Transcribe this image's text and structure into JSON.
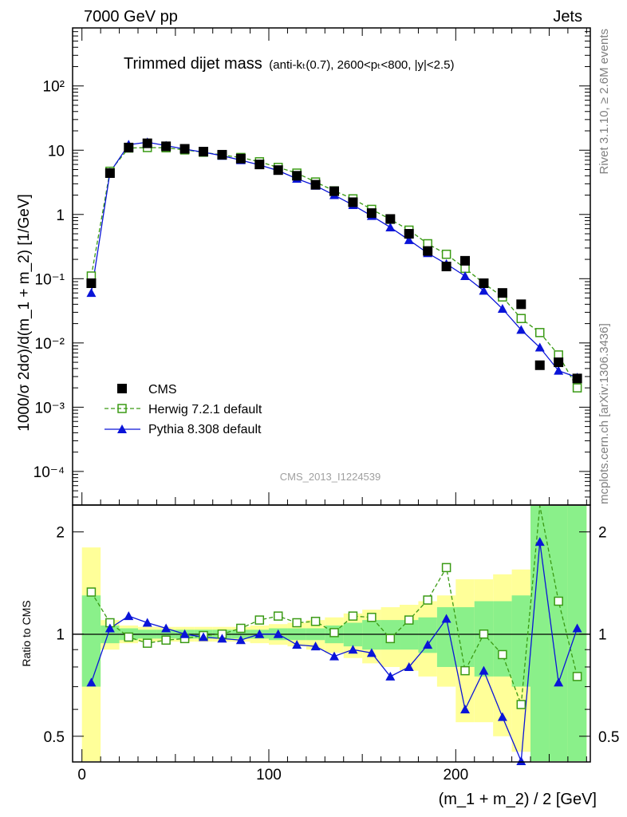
{
  "header": {
    "left_label": "7000 GeV pp",
    "right_label": "Jets"
  },
  "title": {
    "main": "Trimmed dijet mass",
    "detail": "(anti-kₜ(0.7), 2600<pₜ<800, |y|<2.5)"
  },
  "side_labels": {
    "rivet": "Rivet 3.1.10, ≥ 2.6M events",
    "mcplots": "mcplots.cern.ch [arXiv:1306.3436]"
  },
  "watermark": "CMS_2013_I1224539",
  "axes": {
    "ylabel_top": "1000/σ 2dσ)/d(m_1 + m_2) [1/GeV]",
    "ylabel_bottom": "Ratio to CMS",
    "xlabel": "(m_1 + m_2) / 2 [GeV]",
    "x_ticks": [
      "0",
      "100",
      "200"
    ],
    "y_ticks_top": [
      "10⁻⁴",
      "10⁻³",
      "10⁻²",
      "10⁻¹",
      "1",
      "10",
      "10²"
    ],
    "y_ticks_bottom": [
      "0.5",
      "1",
      "2"
    ]
  },
  "legend": [
    {
      "key": "cms",
      "label": "CMS"
    },
    {
      "key": "herwig",
      "label": "Herwig 7.2.1 default"
    },
    {
      "key": "pythia",
      "label": "Pythia 8.308 default"
    }
  ],
  "colors": {
    "cms": "#000000",
    "herwig": "#3a9a14",
    "pythia": "#0a14d8",
    "band_inner": "#8af08a",
    "band_outer": "#ffff99"
  },
  "chart_data": {
    "type": "line",
    "x_scale": "linear",
    "xlim": [
      -5,
      272
    ],
    "top_panel": {
      "y_scale": "log",
      "ylim": [
        3e-05,
        800
      ]
    },
    "ratio_panel": {
      "y_scale": "log",
      "ylim": [
        0.42,
        2.4
      ],
      "reference": 1
    },
    "x": [
      5,
      15,
      25,
      35,
      45,
      55,
      65,
      75,
      85,
      95,
      105,
      115,
      125,
      135,
      145,
      155,
      165,
      175,
      185,
      195,
      205,
      215,
      225,
      235,
      245,
      255,
      265
    ],
    "series": [
      {
        "name": "CMS",
        "key": "cms",
        "values": [
          0.085,
          4.4,
          11.0,
          12.8,
          11.5,
          10.5,
          9.5,
          8.5,
          7.4,
          6.0,
          4.9,
          4.0,
          2.9,
          2.3,
          1.55,
          1.05,
          0.85,
          0.5,
          0.27,
          0.155,
          0.19,
          0.085,
          0.06,
          0.04,
          0.0045,
          0.005,
          0.0028
        ]
      },
      {
        "name": "Herwig 7.2.1 default",
        "key": "herwig",
        "values": [
          0.11,
          4.7,
          10.8,
          11.0,
          10.9,
          10.1,
          9.3,
          8.4,
          7.7,
          6.6,
          5.4,
          4.4,
          3.2,
          2.33,
          1.75,
          1.2,
          0.84,
          0.57,
          0.35,
          0.24,
          0.145,
          0.085,
          0.052,
          0.024,
          0.0145,
          0.0065,
          0.002
        ]
      },
      {
        "name": "Pythia 8.308 default",
        "key": "pythia",
        "values": [
          0.06,
          4.5,
          12.2,
          13.3,
          11.8,
          10.4,
          9.3,
          8.2,
          7.0,
          5.9,
          4.8,
          3.6,
          2.8,
          2.0,
          1.4,
          0.95,
          0.63,
          0.4,
          0.25,
          0.17,
          0.11,
          0.065,
          0.034,
          0.016,
          0.0085,
          0.0037,
          0.0029
        ]
      }
    ],
    "ratio": {
      "herwig": [
        1.33,
        1.08,
        0.98,
        0.94,
        0.96,
        0.97,
        0.99,
        1.0,
        1.04,
        1.1,
        1.13,
        1.08,
        1.09,
        1.01,
        1.13,
        1.12,
        0.97,
        1.1,
        1.26,
        1.57,
        0.78,
        1.0,
        0.87,
        0.62,
        2.5,
        1.25,
        0.75
      ],
      "pythia": [
        0.72,
        1.04,
        1.13,
        1.08,
        1.04,
        1.0,
        0.98,
        0.97,
        0.96,
        1.0,
        1.0,
        0.93,
        0.92,
        0.86,
        0.9,
        0.88,
        0.75,
        0.8,
        0.93,
        1.11,
        0.6,
        0.78,
        0.57,
        0.39,
        1.87,
        0.72,
        1.04
      ]
    },
    "uncertainty_bands": {
      "inner_half_width": [
        0.3,
        0.06,
        0.04,
        0.03,
        0.03,
        0.03,
        0.03,
        0.03,
        0.03,
        0.03,
        0.04,
        0.04,
        0.04,
        0.06,
        0.08,
        0.1,
        0.1,
        0.1,
        0.12,
        0.2,
        0.2,
        0.25,
        0.25,
        0.3,
        1.5,
        1.5,
        1.5
      ],
      "outer_half_width": [
        0.8,
        0.1,
        0.06,
        0.05,
        0.05,
        0.05,
        0.05,
        0.05,
        0.05,
        0.06,
        0.07,
        0.08,
        0.1,
        0.12,
        0.15,
        0.18,
        0.2,
        0.22,
        0.25,
        0.3,
        0.45,
        0.45,
        0.5,
        0.55,
        2.0,
        2.0,
        2.0
      ]
    }
  }
}
